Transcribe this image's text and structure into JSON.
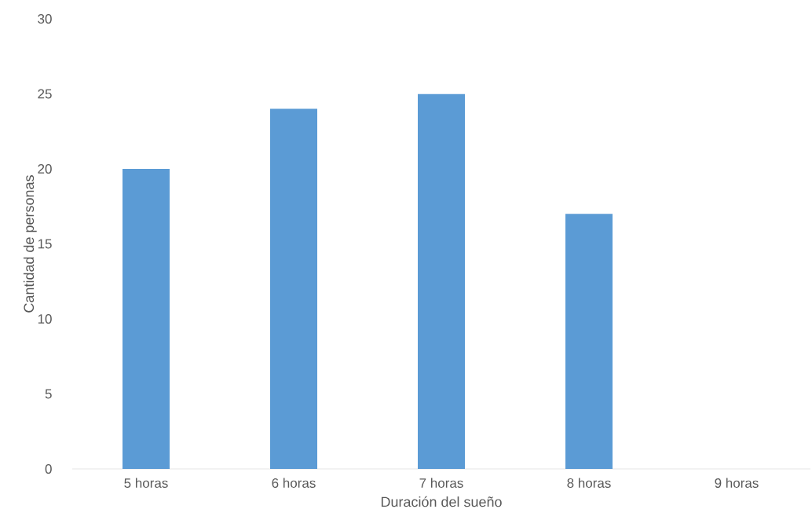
{
  "chart_data": {
    "type": "bar",
    "xlabel": "Duración del sueño",
    "ylabel": "Cantidad de personas",
    "categories": [
      "5 horas",
      "6 horas",
      "7 horas",
      "8 horas",
      "9 horas"
    ],
    "values": [
      20,
      24,
      25,
      17,
      0
    ],
    "color": "#5b9bd5",
    "ylim": [
      0,
      30
    ],
    "yticks": [
      0,
      5,
      10,
      15,
      20,
      25,
      30
    ]
  }
}
